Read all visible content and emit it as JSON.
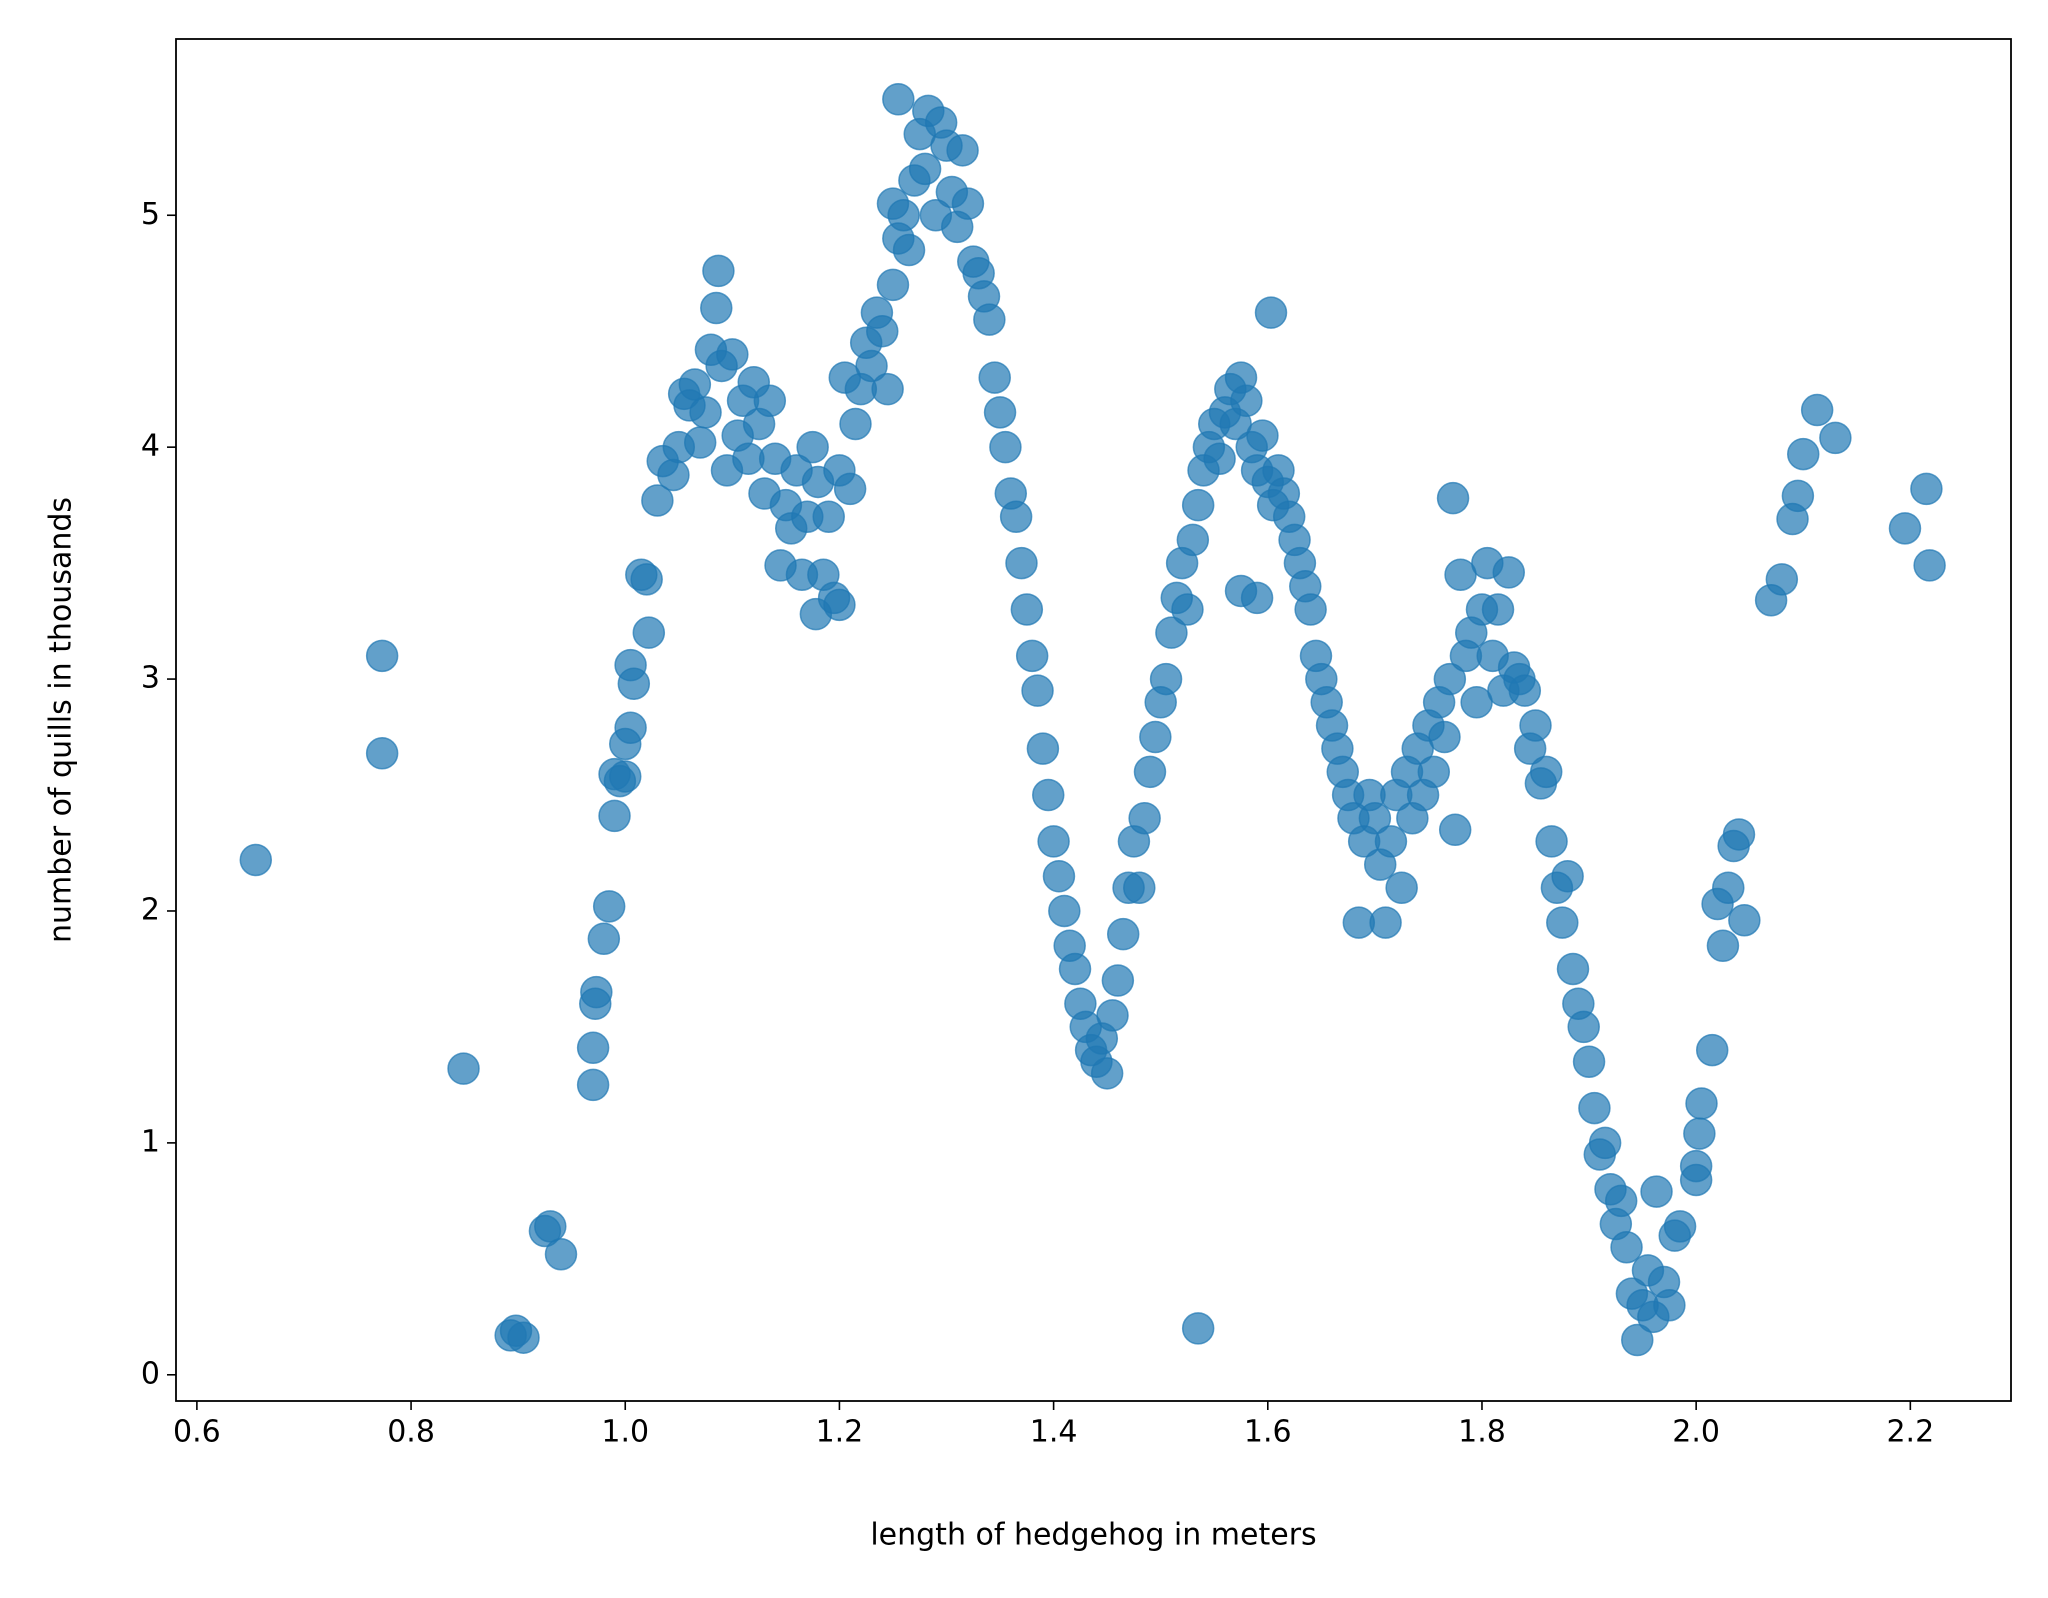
{
  "chart_data": {
    "type": "scatter",
    "x_label": "length of hedgehog in meters",
    "y_label": "number of quills in thousands",
    "color": "#1f77b4",
    "xlim": [
      0.5805,
      2.294
    ],
    "ylim": [
      -0.113,
      5.76
    ],
    "xticks": [
      0.6,
      0.8,
      {
        "value": 1,
        "label": "1.0"
      },
      1.2,
      1.4,
      1.6,
      1.8,
      {
        "value": 2,
        "label": "2.0"
      },
      2.2
    ],
    "yticks": [
      0,
      1,
      2,
      3,
      4,
      5
    ],
    "x": [
      0.655,
      0.773,
      0.773,
      0.849,
      0.893,
      0.898,
      0.905,
      0.925,
      0.93,
      0.94,
      0.97,
      0.97,
      0.972,
      0.973,
      0.98,
      0.985,
      0.99,
      0.99,
      0.995,
      1.0,
      1.0,
      1.005,
      1.008,
      1.005,
      1.015,
      1.02,
      1.022,
      1.03,
      1.035,
      1.045,
      1.05,
      1.055,
      1.06,
      1.065,
      1.07,
      1.075,
      1.08,
      1.085,
      1.087,
      1.09,
      1.095,
      1.1,
      1.105,
      1.11,
      1.115,
      1.12,
      1.125,
      1.13,
      1.135,
      1.14,
      1.145,
      1.15,
      1.155,
      1.16,
      1.165,
      1.17,
      1.175,
      1.178,
      1.18,
      1.185,
      1.19,
      1.195,
      1.2,
      1.2,
      1.205,
      1.21,
      1.215,
      1.22,
      1.225,
      1.23,
      1.235,
      1.24,
      1.245,
      1.25,
      1.25,
      1.255,
      1.26,
      1.255,
      1.265,
      1.27,
      1.275,
      1.28,
      1.283,
      1.29,
      1.295,
      1.3,
      1.305,
      1.31,
      1.315,
      1.32,
      1.325,
      1.33,
      1.335,
      1.34,
      1.345,
      1.35,
      1.355,
      1.36,
      1.365,
      1.37,
      1.375,
      1.38,
      1.385,
      1.39,
      1.395,
      1.4,
      1.405,
      1.41,
      1.415,
      1.42,
      1.425,
      1.43,
      1.435,
      1.44,
      1.445,
      1.45,
      1.455,
      1.46,
      1.465,
      1.47,
      1.475,
      1.48,
      1.485,
      1.49,
      1.495,
      1.5,
      1.505,
      1.51,
      1.515,
      1.52,
      1.525,
      1.53,
      1.535,
      1.54,
      1.545,
      1.55,
      1.555,
      1.56,
      1.565,
      1.57,
      1.575,
      1.58,
      1.585,
      1.59,
      1.595,
      1.6,
      1.603,
      1.605,
      1.61,
      1.615,
      1.62,
      1.625,
      1.63,
      1.635,
      1.64,
      1.645,
      1.65,
      1.655,
      1.66,
      1.665,
      1.67,
      1.675,
      1.68,
      1.685,
      1.69,
      1.695,
      1.7,
      1.705,
      1.71,
      1.715,
      1.72,
      1.725,
      1.73,
      1.735,
      1.74,
      1.745,
      1.75,
      1.755,
      1.76,
      1.765,
      1.77,
      1.773,
      1.775,
      1.78,
      1.785,
      1.79,
      1.795,
      1.8,
      1.805,
      1.81,
      1.815,
      1.82,
      1.825,
      1.83,
      1.835,
      1.84,
      1.845,
      1.85,
      1.855,
      1.86,
      1.865,
      1.87,
      1.875,
      1.88,
      1.885,
      1.89,
      1.895,
      1.9,
      1.905,
      1.91,
      1.915,
      1.92,
      1.925,
      1.93,
      1.935,
      1.94,
      1.945,
      1.95,
      1.955,
      1.96,
      1.963,
      1.97,
      1.975,
      1.98,
      1.985,
      2.0,
      2.0,
      2.003,
      2.005,
      2.015,
      2.02,
      2.025,
      2.03,
      2.035,
      2.04,
      2.045,
      2.07,
      2.08,
      2.09,
      2.095,
      2.1,
      2.113,
      2.13,
      2.195,
      2.215,
      2.218,
      1.535,
      1.59,
      1.575
    ],
    "y": [
      2.22,
      3.1,
      2.68,
      1.32,
      0.17,
      0.19,
      0.16,
      0.62,
      0.64,
      0.52,
      1.25,
      1.41,
      1.6,
      1.65,
      1.88,
      2.02,
      2.41,
      2.59,
      2.56,
      2.58,
      2.72,
      2.79,
      2.98,
      3.06,
      3.45,
      3.43,
      3.2,
      3.77,
      3.94,
      3.88,
      4.0,
      4.23,
      4.18,
      4.27,
      4.02,
      4.15,
      4.42,
      4.6,
      4.76,
      4.35,
      3.9,
      4.4,
      4.05,
      4.2,
      3.95,
      4.28,
      4.1,
      3.8,
      4.2,
      3.95,
      3.49,
      3.75,
      3.65,
      3.9,
      3.45,
      3.7,
      4.0,
      3.28,
      3.85,
      3.45,
      3.7,
      3.35,
      3.32,
      3.9,
      4.3,
      3.82,
      4.1,
      4.25,
      4.45,
      4.35,
      4.58,
      4.5,
      4.25,
      4.7,
      5.05,
      4.9,
      5.0,
      5.5,
      4.85,
      5.15,
      5.35,
      5.2,
      5.45,
      5.0,
      5.4,
      5.3,
      5.1,
      4.95,
      5.28,
      5.05,
      4.8,
      4.75,
      4.65,
      4.55,
      4.3,
      4.15,
      4.0,
      3.8,
      3.7,
      3.5,
      3.3,
      3.1,
      2.95,
      2.7,
      2.5,
      2.3,
      2.15,
      2.0,
      1.85,
      1.75,
      1.6,
      1.5,
      1.4,
      1.35,
      1.45,
      1.3,
      1.55,
      1.7,
      1.9,
      2.1,
      2.3,
      2.1,
      2.4,
      2.6,
      2.75,
      2.9,
      3.0,
      3.2,
      3.35,
      3.5,
      3.3,
      3.6,
      3.75,
      3.9,
      4.0,
      4.1,
      3.95,
      4.15,
      4.25,
      4.1,
      4.3,
      4.2,
      4.0,
      3.9,
      4.05,
      3.85,
      4.58,
      3.75,
      3.9,
      3.8,
      3.7,
      3.6,
      3.5,
      3.4,
      3.3,
      3.1,
      3.0,
      2.9,
      2.8,
      2.7,
      2.6,
      2.5,
      2.4,
      1.95,
      2.3,
      2.5,
      2.4,
      2.2,
      1.95,
      2.3,
      2.5,
      2.1,
      2.6,
      2.4,
      2.7,
      2.5,
      2.8,
      2.6,
      2.9,
      2.75,
      3.0,
      3.78,
      2.35,
      3.45,
      3.1,
      3.2,
      2.9,
      3.3,
      3.5,
      3.1,
      3.3,
      2.95,
      3.46,
      3.05,
      3.0,
      2.95,
      2.7,
      2.8,
      2.55,
      2.6,
      2.3,
      2.1,
      1.95,
      2.15,
      1.75,
      1.6,
      1.5,
      1.35,
      1.15,
      0.95,
      1.0,
      0.8,
      0.65,
      0.75,
      0.55,
      0.35,
      0.15,
      0.3,
      0.45,
      0.25,
      0.79,
      0.4,
      0.3,
      0.6,
      0.64,
      0.84,
      0.9,
      1.04,
      1.17,
      1.4,
      2.03,
      1.85,
      2.1,
      2.28,
      2.33,
      1.96,
      3.34,
      3.43,
      3.69,
      3.79,
      3.97,
      4.16,
      4.04,
      3.65,
      3.82,
      3.49,
      0.2,
      3.35,
      3.38
    ]
  }
}
